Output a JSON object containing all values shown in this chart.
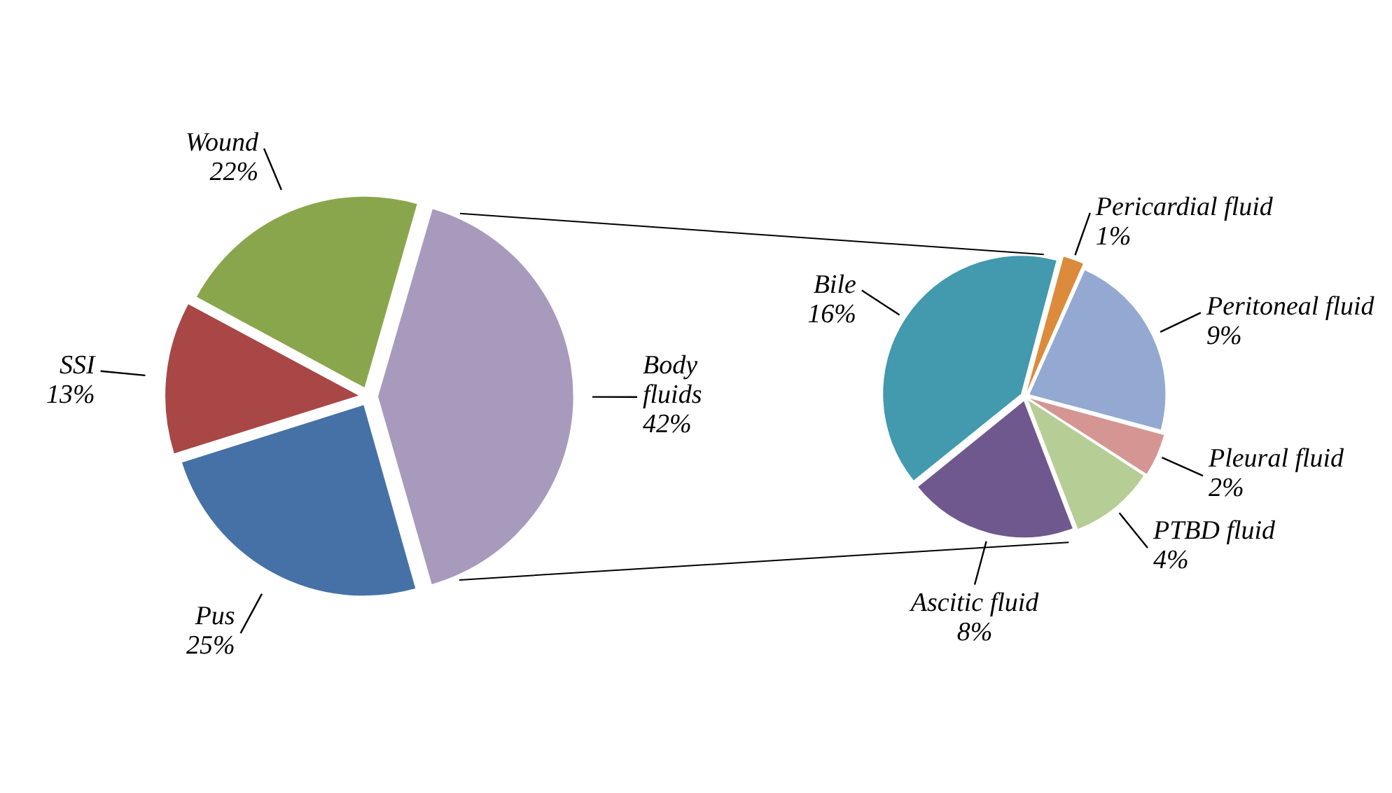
{
  "chart_data": [
    {
      "type": "pie",
      "categories": [
        "Body fluids",
        "Pus",
        "SSI",
        "Wound"
      ],
      "values": [
        42,
        25,
        13,
        22
      ],
      "colors": [
        "#a89abd",
        "#4571a6",
        "#a84745",
        "#8aa64c"
      ],
      "value_labels": [
        "42%",
        "25%",
        "13%",
        "22%"
      ],
      "legend": false
    },
    {
      "type": "pie",
      "categories": [
        "Pericardial fluid",
        "Peritoneal fluid",
        "Pleural fluid",
        "PTBD fluid",
        "Ascitic fluid",
        "Bile"
      ],
      "values": [
        1,
        9,
        2,
        4,
        8,
        16
      ],
      "colors": [
        "#dc8a3c",
        "#94a9d1",
        "#d49593",
        "#b6cd95",
        "#6f588e",
        "#4399ae"
      ],
      "value_labels": [
        "1%",
        "9%",
        "2%",
        "4%",
        "8%",
        "16%"
      ],
      "legend": false
    }
  ]
}
